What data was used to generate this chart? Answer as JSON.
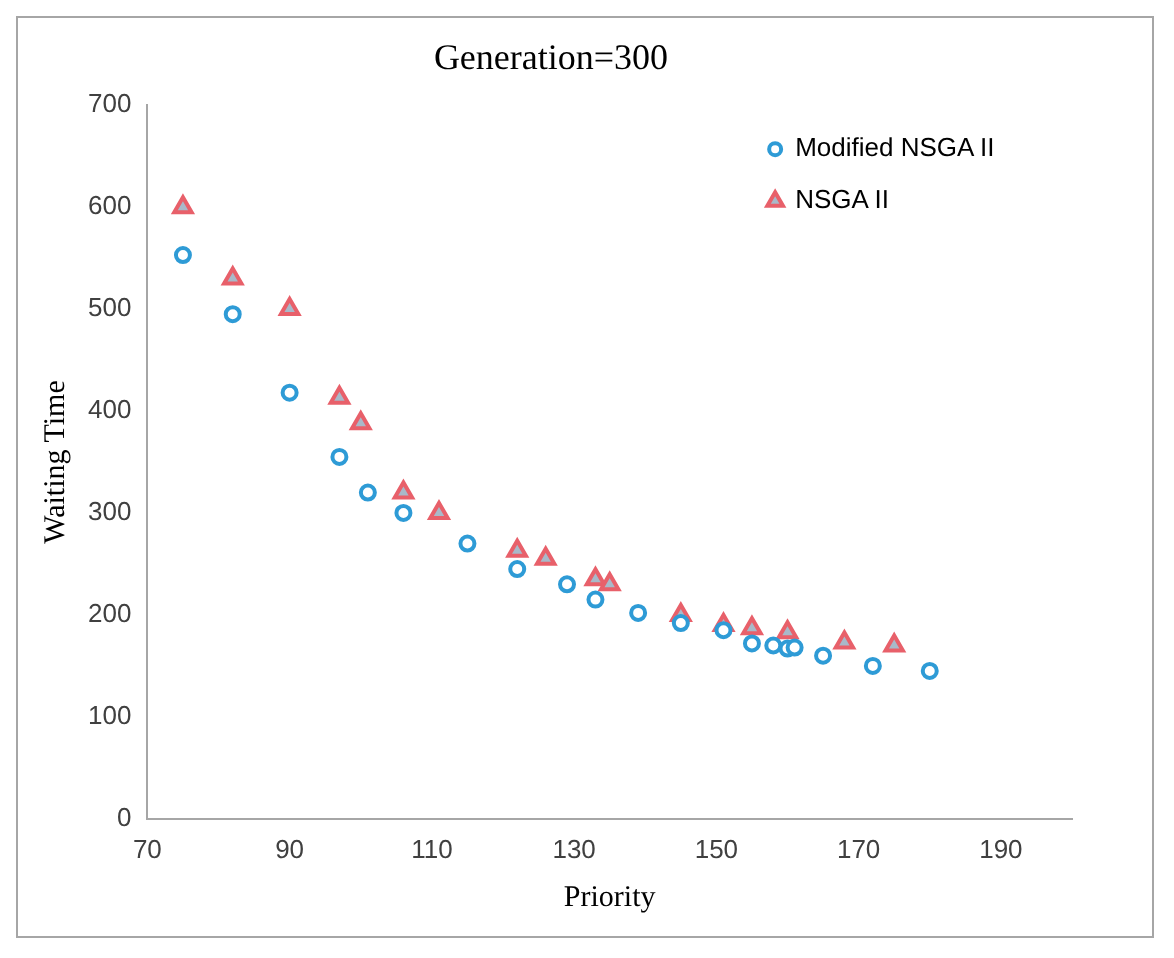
{
  "chart_data": {
    "type": "scatter",
    "title": "Generation=300",
    "xlabel": "Priority",
    "ylabel": "Waiting Time",
    "xlim": [
      70,
      200
    ],
    "xticks": [
      70,
      90,
      110,
      130,
      150,
      170,
      190
    ],
    "ylim": [
      0,
      700
    ],
    "yticks": [
      0,
      100,
      200,
      300,
      400,
      500,
      600,
      700
    ],
    "grid": false,
    "legend": "top right",
    "series": [
      {
        "name": "Modified NSGA II",
        "color": "#2e9bd6",
        "marker": "circle",
        "x": [
          75,
          82,
          90,
          97,
          101,
          106,
          115,
          122,
          129,
          133,
          139,
          145,
          151,
          155,
          158,
          160,
          161,
          165,
          172,
          180
        ],
        "values": [
          553,
          495,
          418,
          355,
          320,
          300,
          270,
          245,
          230,
          215,
          202,
          192,
          185,
          172,
          170,
          167,
          168,
          160,
          150,
          145
        ]
      },
      {
        "name": "NSGA II",
        "color": "#e8606a",
        "marker": "triangle",
        "x": [
          75,
          82,
          90,
          97,
          100,
          106,
          111,
          122,
          126,
          133,
          135,
          145,
          151,
          155,
          160,
          168,
          175
        ],
        "values": [
          600,
          530,
          500,
          413,
          388,
          320,
          300,
          263,
          255,
          235,
          230,
          200,
          190,
          187,
          183,
          173,
          170
        ]
      }
    ]
  }
}
